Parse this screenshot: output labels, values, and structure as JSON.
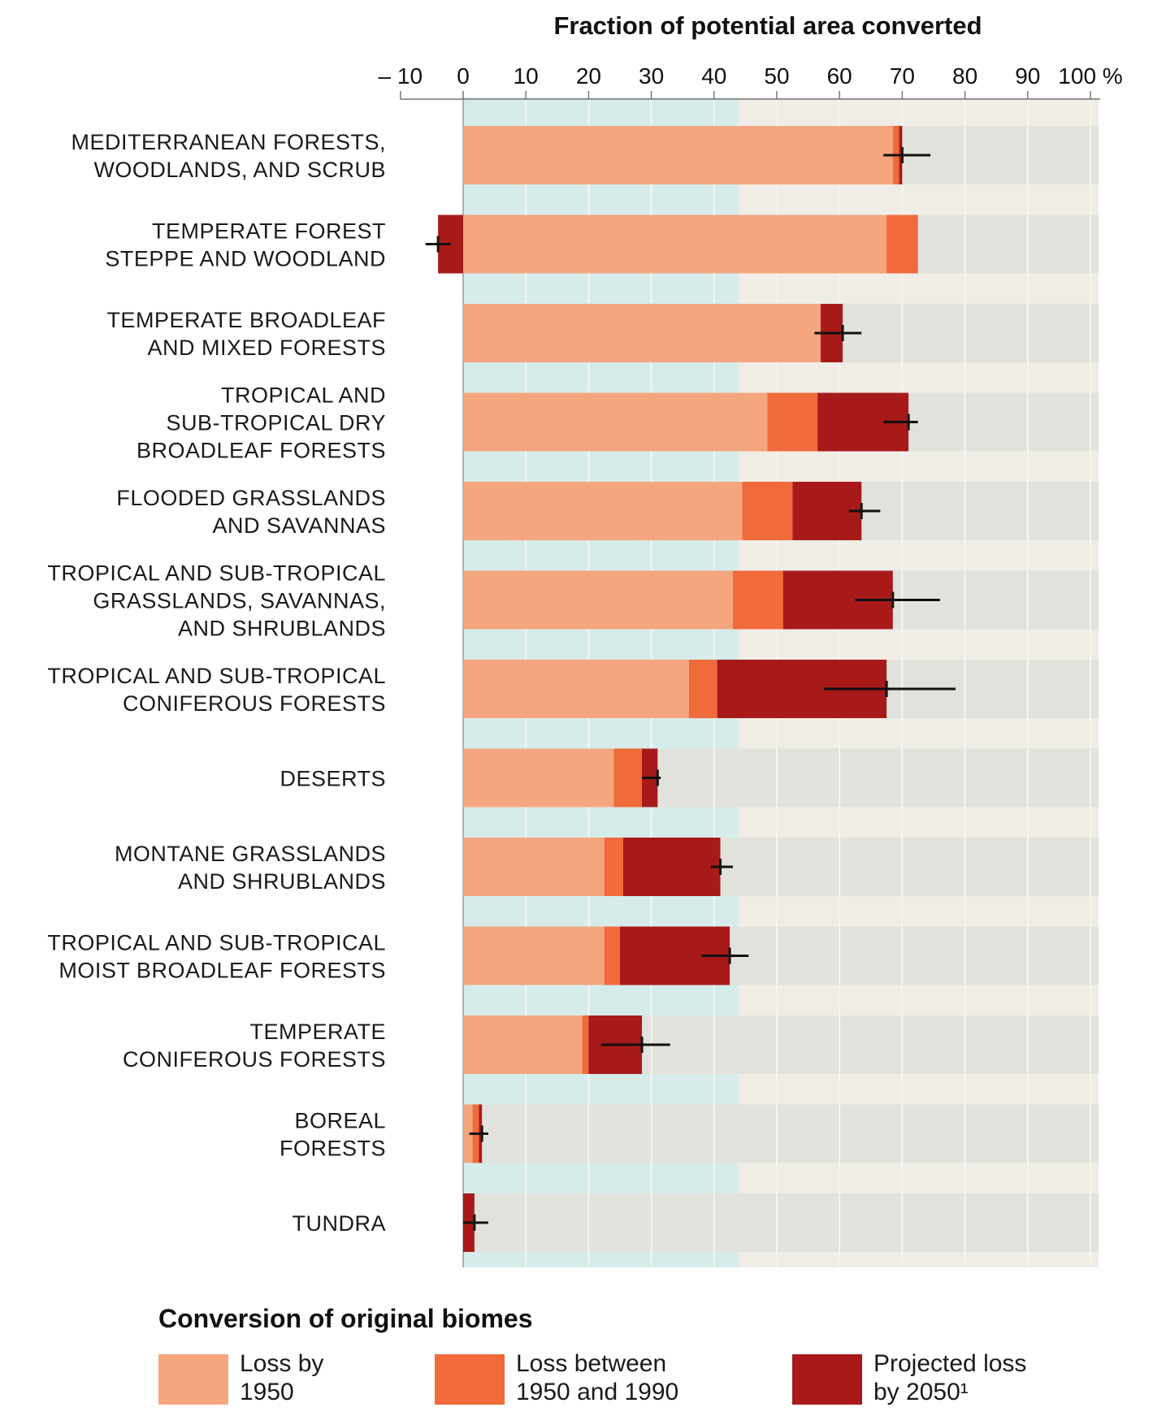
{
  "chart_data": {
    "type": "bar",
    "orientation": "horizontal",
    "stacked": true,
    "xlabel": "Fraction of potential area converted",
    "xlim": [
      -10,
      100
    ],
    "xticks": [
      "– 10",
      "0",
      "10",
      "20",
      "30",
      "40",
      "50",
      "60",
      "70",
      "80",
      "90",
      "100 %"
    ],
    "tick_values": [
      -10,
      0,
      10,
      20,
      30,
      40,
      50,
      60,
      70,
      80,
      90,
      100
    ],
    "categories": [
      [
        "MEDITERRANEAN FORESTS,",
        "WOODLANDS, AND SCRUB"
      ],
      [
        "TEMPERATE FOREST",
        "STEPPE AND WOODLAND"
      ],
      [
        "TEMPERATE BROADLEAF",
        "AND MIXED FORESTS"
      ],
      [
        "TROPICAL AND",
        "SUB-TROPICAL DRY",
        "BROADLEAF FORESTS"
      ],
      [
        "FLOODED GRASSLANDS",
        "AND SAVANNAS"
      ],
      [
        "TROPICAL AND SUB-TROPICAL",
        "GRASSLANDS, SAVANNAS,",
        "AND SHRUBLANDS"
      ],
      [
        "TROPICAL AND SUB-TROPICAL",
        "CONIFEROUS FORESTS"
      ],
      [
        "DESERTS"
      ],
      [
        "MONTANE GRASSLANDS",
        "AND SHRUBLANDS"
      ],
      [
        "TROPICAL AND SUB-TROPICAL",
        "MOIST BROADLEAF FORESTS"
      ],
      [
        "TEMPERATE",
        "CONIFEROUS FORESTS"
      ],
      [
        "BOREAL",
        "FORESTS"
      ],
      [
        "TUNDRA"
      ]
    ],
    "series": [
      {
        "name": "Loss by 1950",
        "color": "#f5a67e",
        "values": [
          68.5,
          67.5,
          57,
          48.5,
          44.5,
          43,
          36,
          24,
          22.5,
          22.5,
          19,
          1.5,
          0
        ]
      },
      {
        "name": "Loss between 1950 and 1990",
        "color": "#f06a3a",
        "values": [
          1,
          5,
          0,
          8,
          8,
          8,
          4.5,
          4.5,
          3,
          2.5,
          1,
          1,
          0
        ]
      },
      {
        "name": "Projected loss by 2050",
        "color": "#a81a1a",
        "values": [
          0.5,
          -4,
          3.5,
          14.5,
          11,
          17.5,
          27,
          2.5,
          15.5,
          17.5,
          8.5,
          0.5,
          1.8
        ]
      }
    ],
    "error_bars": [
      [
        67,
        74.5
      ],
      [
        -6,
        -2
      ],
      [
        56,
        63.5
      ],
      [
        67,
        72.5
      ],
      [
        61.5,
        66.5
      ],
      [
        62.5,
        76
      ],
      [
        57.5,
        78.5
      ],
      [
        28.5,
        31.5
      ],
      [
        39.5,
        43
      ],
      [
        38,
        45.5
      ],
      [
        22,
        33
      ],
      [
        1,
        4
      ],
      [
        0,
        4
      ]
    ],
    "colors": {
      "teal_band": "#bfe0e0",
      "teal_gap": "#d6ecea",
      "grey_band": "#e2e2dc",
      "grey_gap": "#efede5"
    }
  },
  "legend": {
    "title": "Conversion of original biomes",
    "items": [
      {
        "lines": [
          "Loss by",
          "1950"
        ],
        "color": "#f5a67e"
      },
      {
        "lines": [
          "Loss between",
          "1950 and 1990"
        ],
        "color": "#f06a3a"
      },
      {
        "lines": [
          "Projected loss",
          "by 2050¹"
        ],
        "color": "#a81a1a"
      }
    ]
  }
}
